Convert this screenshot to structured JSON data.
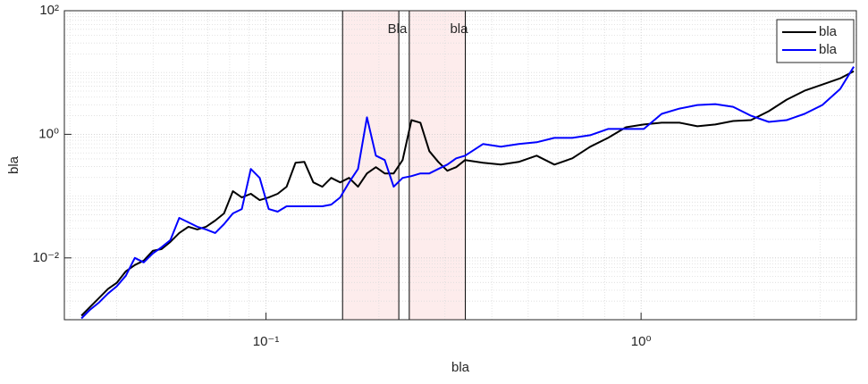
{
  "chart_data": {
    "type": "line",
    "xlabel": "bla",
    "ylabel": "bla",
    "xscale": "log",
    "yscale": "log",
    "xlim": [
      0.029,
      3.75
    ],
    "ylim": [
      0.001,
      100
    ],
    "xticks": [
      {
        "value": 0.1,
        "label": "10⁻¹"
      },
      {
        "value": 1,
        "label": "10⁰"
      }
    ],
    "yticks": [
      {
        "value": 0.01,
        "label": "10⁻²"
      },
      {
        "value": 1,
        "label": "10⁰"
      },
      {
        "value": 100,
        "label": "10²"
      }
    ],
    "grid": true,
    "minor_grid": true,
    "legend": "northeast",
    "x": [
      0.0322,
      0.034,
      0.0359,
      0.0379,
      0.04,
      0.0423,
      0.0447,
      0.0472,
      0.0499,
      0.0527,
      0.0556,
      0.0587,
      0.0621,
      0.0656,
      0.0692,
      0.0732,
      0.0773,
      0.0816,
      0.0862,
      0.0911,
      0.0962,
      0.1017,
      0.1074,
      0.1135,
      0.1199,
      0.1266,
      0.1337,
      0.1413,
      0.1492,
      0.1576,
      0.1665,
      0.1759,
      0.1858,
      0.1963,
      0.2073,
      0.219,
      0.2313,
      0.2443,
      0.2581,
      0.2726,
      0.288,
      0.3043,
      0.3214,
      0.3395,
      0.3789,
      0.4228,
      0.4718,
      0.5265,
      0.5875,
      0.6556,
      0.7316,
      0.8164,
      0.911,
      1.017,
      1.135,
      1.266,
      1.413,
      1.577,
      1.759,
      1.963,
      2.19,
      2.444,
      2.727,
      3.043,
      3.395,
      3.69
    ],
    "series": [
      {
        "name": "bla",
        "color": "#000000",
        "values": [
          0.00116,
          0.00162,
          0.00225,
          0.00314,
          0.00395,
          0.00608,
          0.00767,
          0.00905,
          0.013,
          0.0139,
          0.0182,
          0.0253,
          0.0319,
          0.0289,
          0.0319,
          0.0402,
          0.0524,
          0.12,
          0.0951,
          0.109,
          0.0861,
          0.0951,
          0.109,
          0.142,
          0.347,
          0.358,
          0.167,
          0.142,
          0.197,
          0.167,
          0.197,
          0.142,
          0.233,
          0.294,
          0.233,
          0.233,
          0.383,
          1.7,
          1.54,
          0.533,
          0.358,
          0.257,
          0.294,
          0.383,
          0.347,
          0.324,
          0.358,
          0.451,
          0.324,
          0.409,
          0.629,
          0.875,
          1.3,
          1.44,
          1.54,
          1.54,
          1.35,
          1.44,
          1.64,
          1.7,
          2.37,
          3.64,
          5.07,
          6.39,
          8.06,
          10.5
        ]
      },
      {
        "name": "bla",
        "color": "#0000ff",
        "values": [
          0.00105,
          0.00146,
          0.00191,
          0.00265,
          0.00347,
          0.00515,
          0.01,
          0.00848,
          0.0118,
          0.0149,
          0.0194,
          0.0444,
          0.0376,
          0.0319,
          0.0289,
          0.0253,
          0.0352,
          0.0524,
          0.0618,
          0.275,
          0.197,
          0.0618,
          0.056,
          0.0684,
          0.0684,
          0.0684,
          0.0684,
          0.0684,
          0.073,
          0.0951,
          0.167,
          0.275,
          1.88,
          0.451,
          0.383,
          0.142,
          0.197,
          0.211,
          0.233,
          0.233,
          0.275,
          0.324,
          0.409,
          0.451,
          0.695,
          0.629,
          0.695,
          0.743,
          0.875,
          0.875,
          0.967,
          1.22,
          1.22,
          1.22,
          2.14,
          2.61,
          2.98,
          3.08,
          2.79,
          2.0,
          1.59,
          1.7,
          2.14,
          2.98,
          5.42,
          12.4
        ]
      }
    ],
    "shaded_regions": [
      {
        "x": [
          0.16,
          0.226
        ],
        "color": "#fdecec"
      },
      {
        "x": [
          0.241,
          0.34
        ],
        "color": "#fdecec"
      }
    ],
    "annotations": [
      {
        "text": "Bla",
        "x": 0.224,
        "y": 50
      },
      {
        "text": "bla",
        "x": 0.327,
        "y": 50
      }
    ]
  }
}
